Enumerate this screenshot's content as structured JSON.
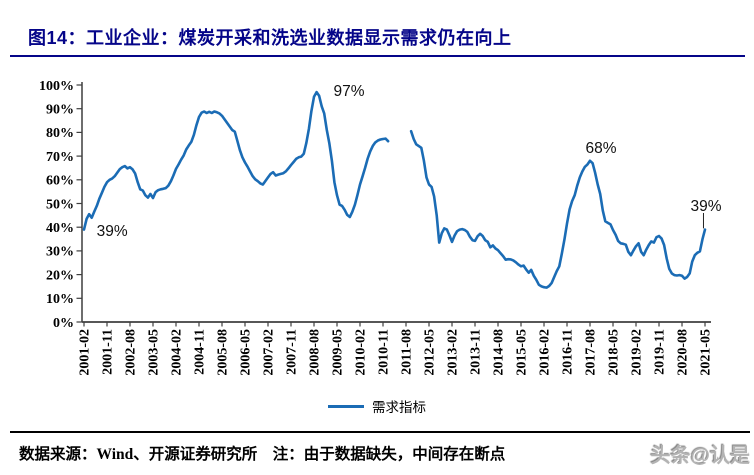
{
  "figure": {
    "title": "图14：工业企业：煤炭开采和洗选业数据显示需求仍在向上",
    "source_note": "数据来源：Wind、开源证券研究所　注：由于数据缺失，中间存在断点",
    "watermark": "头条@认是"
  },
  "legend": {
    "label": "需求指标"
  },
  "colors": {
    "line": "#1b6cb5",
    "title": "#050589",
    "axis": "#3f3f3f",
    "annotation": "#111111"
  },
  "chart_data": {
    "type": "line",
    "title": "工业企业：煤炭开采和洗选业数据显示需求仍在向上",
    "ylabel": "",
    "ylim": [
      0,
      100
    ],
    "grid": false,
    "legend_position": "bottom-center",
    "y_tick_labels": [
      "0%",
      "10%",
      "20%",
      "30%",
      "40%",
      "50%",
      "60%",
      "70%",
      "80%",
      "90%",
      "100%"
    ],
    "x_tick_labels": [
      "2001-02",
      "2001-11",
      "2002-08",
      "2003-05",
      "2004-02",
      "2004-11",
      "2005-08",
      "2006-05",
      "2007-02",
      "2007-11",
      "2008-08",
      "2009-05",
      "2010-02",
      "2010-11",
      "2011-08",
      "2012-05",
      "2013-02",
      "2013-11",
      "2014-08",
      "2015-05",
      "2016-02",
      "2016-11",
      "2017-08",
      "2018-05",
      "2019-02",
      "2019-11",
      "2020-08",
      "2021-05"
    ],
    "x_tick_interval_months": 9,
    "x_start": "2001-02",
    "x_end": "2021-05",
    "gap": "2011-02 to 2011-09 values missing (break in line)",
    "series": [
      {
        "name": "需求指标",
        "color": "#1b6cb5",
        "start_month": "2001-02",
        "monthly_values": [
          39,
          43.5,
          45.5,
          44,
          46.5,
          49,
          52,
          54.5,
          57,
          59,
          60,
          60.5,
          61.5,
          63,
          64.5,
          65.3,
          65.8,
          64.8,
          65.3,
          64.4,
          62.7,
          59,
          56,
          55.5,
          53.5,
          52.5,
          54,
          52.3,
          54.8,
          55.6,
          56,
          56.2,
          56.5,
          57.5,
          59.4,
          61.8,
          64.6,
          66.5,
          68.5,
          70.3,
          72.8,
          74.5,
          76,
          79,
          83,
          86.5,
          88.3,
          88.8,
          88.2,
          88.7,
          88.2,
          88.8,
          88.5,
          88,
          87,
          85.5,
          84,
          82.5,
          81,
          80.3,
          76.5,
          72.5,
          69.5,
          67.3,
          65.5,
          63.5,
          61.5,
          60.2,
          59.4,
          58.5,
          58,
          59.5,
          61,
          62.5,
          63.2,
          61.8,
          62.2,
          62.5,
          62.8,
          63.6,
          64.8,
          66.2,
          67.5,
          68.8,
          69.5,
          69.8,
          71,
          75.5,
          81.5,
          89,
          95,
          97,
          95.5,
          91,
          88,
          81,
          75.5,
          68,
          59,
          53.5,
          49.5,
          49,
          47.3,
          45.2,
          44.3,
          46.5,
          49.5,
          53.5,
          58,
          61.5,
          65,
          69,
          72,
          74.3,
          75.8,
          76.6,
          77,
          77.2,
          77.4,
          76.3,
          null,
          null,
          null,
          null,
          null,
          null,
          null,
          null,
          80.5,
          77.2,
          75,
          74.2,
          73.5,
          68,
          61,
          58,
          57,
          53,
          45,
          33.5,
          37.5,
          39.5,
          39,
          36.5,
          33.8,
          36.5,
          38.3,
          39,
          39.2,
          38.8,
          38,
          36,
          34.5,
          34.2,
          36.2,
          37.2,
          36.3,
          34.5,
          33.8,
          31.5,
          32.3,
          31,
          30.3,
          29,
          27.8,
          26.3,
          26.5,
          26.4,
          26,
          25.2,
          24.2,
          23.5,
          23.8,
          22.2,
          20.8,
          22,
          19.5,
          17.8,
          15.7,
          15,
          14.7,
          14.5,
          15.2,
          16.5,
          19,
          21.5,
          23.5,
          29,
          35,
          41.5,
          47.5,
          51,
          53.5,
          57.5,
          61,
          63.5,
          65.5,
          66.5,
          68,
          67,
          63,
          58,
          54,
          47,
          42.5,
          41.8,
          41.2,
          38.8,
          36.8,
          34.2,
          33.2,
          33,
          32.6,
          29.6,
          28.2,
          30.2,
          32,
          33.2,
          29.6,
          28.2,
          30.5,
          32.5,
          34,
          33.5,
          35.8,
          36.3,
          35.2,
          32.5,
          26.8,
          22.5,
          20.5,
          19.8,
          19.6,
          19.8,
          19.5,
          18.3,
          19,
          20.5,
          25.5,
          28.2,
          29.2,
          29.8,
          35,
          39
        ]
      }
    ],
    "annotations": [
      {
        "text": "39%",
        "month_x": 11,
        "value_y": 38.5
      },
      {
        "text": "97%",
        "month_x": 103.7,
        "value_y": 97.5
      },
      {
        "text": "68%",
        "month_x": 202.3,
        "value_y": 73.4
      },
      {
        "text": "39%",
        "month_x": 243.4,
        "value_y": 48.9,
        "leader": {
          "month_x": 242.4,
          "from_value": 46,
          "to_value": 39.5
        }
      }
    ]
  }
}
